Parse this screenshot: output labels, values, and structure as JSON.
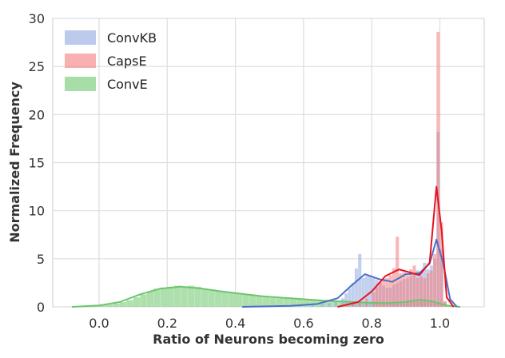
{
  "chart_data": {
    "type": "histogram",
    "title": "",
    "xlabel": "Ratio of Neurons becoming zero",
    "ylabel": "Normalized Frequency",
    "xlim": [
      -0.1,
      1.12
    ],
    "ylim": [
      0,
      30
    ],
    "xticks": [
      "0.0",
      "0.2",
      "0.4",
      "0.6",
      "0.8",
      "1.0"
    ],
    "yticks": [
      "0",
      "5",
      "10",
      "15",
      "20",
      "25",
      "30"
    ],
    "grid": true,
    "legend_position": "top-left",
    "series": [
      {
        "name": "ConvE",
        "color": "#6cc66c",
        "bin_width": 0.02,
        "hist": [
          [
            -0.08,
            0.05
          ],
          [
            -0.06,
            0.1
          ],
          [
            -0.04,
            0.1
          ],
          [
            -0.02,
            0.15
          ],
          [
            0.0,
            0.2
          ],
          [
            0.02,
            0.25
          ],
          [
            0.04,
            0.35
          ],
          [
            0.06,
            0.5
          ],
          [
            0.08,
            0.7
          ],
          [
            0.1,
            1.0
          ],
          [
            0.12,
            1.3
          ],
          [
            0.14,
            1.6
          ],
          [
            0.16,
            1.9
          ],
          [
            0.18,
            2.0
          ],
          [
            0.2,
            2.1
          ],
          [
            0.22,
            2.2
          ],
          [
            0.24,
            2.0
          ],
          [
            0.26,
            2.2
          ],
          [
            0.28,
            2.1
          ],
          [
            0.3,
            1.9
          ],
          [
            0.32,
            1.8
          ],
          [
            0.34,
            1.7
          ],
          [
            0.36,
            1.6
          ],
          [
            0.38,
            1.5
          ],
          [
            0.4,
            1.4
          ],
          [
            0.42,
            1.3
          ],
          [
            0.44,
            1.2
          ],
          [
            0.46,
            1.1
          ],
          [
            0.48,
            1.0
          ],
          [
            0.5,
            0.95
          ],
          [
            0.52,
            0.9
          ],
          [
            0.54,
            0.9
          ],
          [
            0.56,
            0.85
          ],
          [
            0.58,
            0.8
          ],
          [
            0.6,
            0.75
          ],
          [
            0.62,
            0.7
          ],
          [
            0.64,
            0.65
          ],
          [
            0.66,
            0.6
          ],
          [
            0.68,
            0.55
          ],
          [
            0.7,
            0.5
          ],
          [
            0.72,
            0.5
          ],
          [
            0.74,
            0.45
          ],
          [
            0.76,
            0.45
          ],
          [
            0.78,
            0.4
          ],
          [
            0.8,
            0.4
          ],
          [
            0.82,
            0.4
          ],
          [
            0.84,
            0.35
          ],
          [
            0.86,
            0.4
          ],
          [
            0.88,
            0.45
          ],
          [
            0.9,
            0.5
          ],
          [
            0.92,
            0.6
          ],
          [
            0.94,
            0.8
          ],
          [
            0.96,
            0.7
          ],
          [
            0.98,
            0.5
          ],
          [
            1.0,
            0.3
          ],
          [
            1.02,
            0.1
          ],
          [
            1.04,
            0.05
          ]
        ],
        "kde": [
          [
            -0.08,
            0.0
          ],
          [
            0.0,
            0.15
          ],
          [
            0.06,
            0.5
          ],
          [
            0.12,
            1.3
          ],
          [
            0.18,
            1.9
          ],
          [
            0.24,
            2.1
          ],
          [
            0.3,
            1.9
          ],
          [
            0.36,
            1.6
          ],
          [
            0.42,
            1.35
          ],
          [
            0.48,
            1.1
          ],
          [
            0.54,
            0.95
          ],
          [
            0.6,
            0.8
          ],
          [
            0.66,
            0.65
          ],
          [
            0.72,
            0.55
          ],
          [
            0.78,
            0.45
          ],
          [
            0.84,
            0.4
          ],
          [
            0.9,
            0.5
          ],
          [
            0.94,
            0.75
          ],
          [
            0.98,
            0.55
          ],
          [
            1.02,
            0.15
          ],
          [
            1.06,
            0.0
          ]
        ]
      },
      {
        "name": "ConvKB",
        "color": "#8fa9e0",
        "line_color": "#4a6fc9",
        "bin_width": 0.01,
        "hist": [
          [
            0.42,
            0.05
          ],
          [
            0.5,
            0.1
          ],
          [
            0.58,
            0.15
          ],
          [
            0.62,
            0.2
          ],
          [
            0.65,
            0.3
          ],
          [
            0.67,
            0.4
          ],
          [
            0.69,
            0.6
          ],
          [
            0.71,
            0.9
          ],
          [
            0.72,
            1.4
          ],
          [
            0.73,
            1.9
          ],
          [
            0.74,
            2.5
          ],
          [
            0.75,
            4.0
          ],
          [
            0.76,
            5.5
          ],
          [
            0.77,
            3.0
          ],
          [
            0.78,
            3.2
          ],
          [
            0.79,
            3.3
          ],
          [
            0.8,
            3.0
          ],
          [
            0.81,
            2.8
          ],
          [
            0.82,
            2.5
          ],
          [
            0.83,
            2.2
          ],
          [
            0.84,
            2.0
          ],
          [
            0.85,
            2.0
          ],
          [
            0.86,
            2.3
          ],
          [
            0.87,
            2.5
          ],
          [
            0.88,
            2.7
          ],
          [
            0.89,
            2.9
          ],
          [
            0.9,
            3.0
          ],
          [
            0.91,
            3.2
          ],
          [
            0.92,
            3.5
          ],
          [
            0.93,
            3.8
          ],
          [
            0.94,
            3.6
          ],
          [
            0.95,
            4.6
          ],
          [
            0.96,
            3.9
          ],
          [
            0.97,
            4.3
          ],
          [
            0.98,
            5.0
          ],
          [
            0.99,
            18.2
          ],
          [
            1.0,
            6.0
          ],
          [
            1.01,
            0.5
          ]
        ],
        "kde": [
          [
            0.42,
            0.0
          ],
          [
            0.56,
            0.1
          ],
          [
            0.64,
            0.3
          ],
          [
            0.7,
            0.9
          ],
          [
            0.74,
            2.2
          ],
          [
            0.78,
            3.4
          ],
          [
            0.82,
            2.9
          ],
          [
            0.86,
            2.6
          ],
          [
            0.9,
            3.4
          ],
          [
            0.94,
            3.5
          ],
          [
            0.97,
            4.5
          ],
          [
            0.99,
            7.0
          ],
          [
            1.01,
            4.5
          ],
          [
            1.03,
            0.8
          ],
          [
            1.05,
            0.0
          ]
        ]
      },
      {
        "name": "CapsE",
        "color": "#f47b7b",
        "line_color": "#e8121f",
        "bin_width": 0.01,
        "hist": [
          [
            0.7,
            0.1
          ],
          [
            0.72,
            0.2
          ],
          [
            0.74,
            0.4
          ],
          [
            0.76,
            0.6
          ],
          [
            0.78,
            0.9
          ],
          [
            0.8,
            1.5
          ],
          [
            0.81,
            2.1
          ],
          [
            0.82,
            2.6
          ],
          [
            0.83,
            2.9
          ],
          [
            0.84,
            3.0
          ],
          [
            0.85,
            3.3
          ],
          [
            0.86,
            4.0
          ],
          [
            0.87,
            7.3
          ],
          [
            0.88,
            3.5
          ],
          [
            0.89,
            3.6
          ],
          [
            0.9,
            3.3
          ],
          [
            0.91,
            3.9
          ],
          [
            0.92,
            4.3
          ],
          [
            0.93,
            3.0
          ],
          [
            0.94,
            3.2
          ],
          [
            0.95,
            3.0
          ],
          [
            0.96,
            3.5
          ],
          [
            0.97,
            3.8
          ],
          [
            0.98,
            5.5
          ],
          [
            0.99,
            28.6
          ],
          [
            1.0,
            8.8
          ],
          [
            1.01,
            0.6
          ]
        ],
        "kde": [
          [
            0.7,
            0.0
          ],
          [
            0.76,
            0.5
          ],
          [
            0.8,
            1.6
          ],
          [
            0.84,
            3.2
          ],
          [
            0.88,
            3.9
          ],
          [
            0.91,
            3.6
          ],
          [
            0.94,
            3.3
          ],
          [
            0.97,
            4.6
          ],
          [
            0.99,
            12.5
          ],
          [
            1.005,
            8.0
          ],
          [
            1.02,
            1.0
          ],
          [
            1.04,
            0.0
          ]
        ]
      }
    ]
  }
}
